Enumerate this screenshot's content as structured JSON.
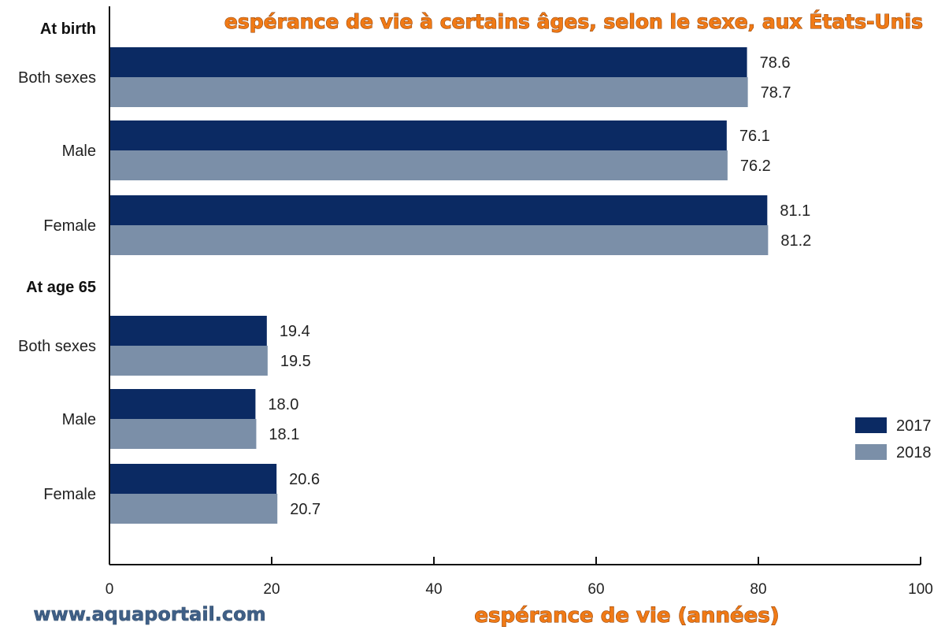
{
  "header": {
    "title": "espérance de vie à certains âges, selon le sexe, aux États-Unis",
    "watermark": "www.aquaportail.com"
  },
  "colors": {
    "series_2017": "#0b2a63",
    "series_2018": "#7b8fa8",
    "title": "#f07a16"
  },
  "chart_data": {
    "type": "bar",
    "orientation": "horizontal",
    "title": "espérance de vie à certains âges, selon le sexe, aux États-Unis",
    "xlabel": "espérance de vie (années)",
    "ylabel": "",
    "xlim": [
      0,
      100
    ],
    "xticks": [
      0,
      20,
      40,
      60,
      80,
      100
    ],
    "grid": false,
    "legend_position": "bottom-right",
    "series": [
      {
        "name": "2017",
        "color": "#0b2a63"
      },
      {
        "name": "2018",
        "color": "#7b8fa8"
      }
    ],
    "groups": [
      {
        "label": "At birth",
        "categories": [
          {
            "label": "Both sexes",
            "values": [
              78.6,
              78.7
            ]
          },
          {
            "label": "Male",
            "values": [
              76.1,
              76.2
            ]
          },
          {
            "label": "Female",
            "values": [
              81.1,
              81.2
            ]
          }
        ]
      },
      {
        "label": "At age 65",
        "categories": [
          {
            "label": "Both sexes",
            "values": [
              19.4,
              19.5
            ]
          },
          {
            "label": "Male",
            "values": [
              18.0,
              18.1
            ]
          },
          {
            "label": "Female",
            "values": [
              20.6,
              20.7
            ]
          }
        ]
      }
    ]
  }
}
